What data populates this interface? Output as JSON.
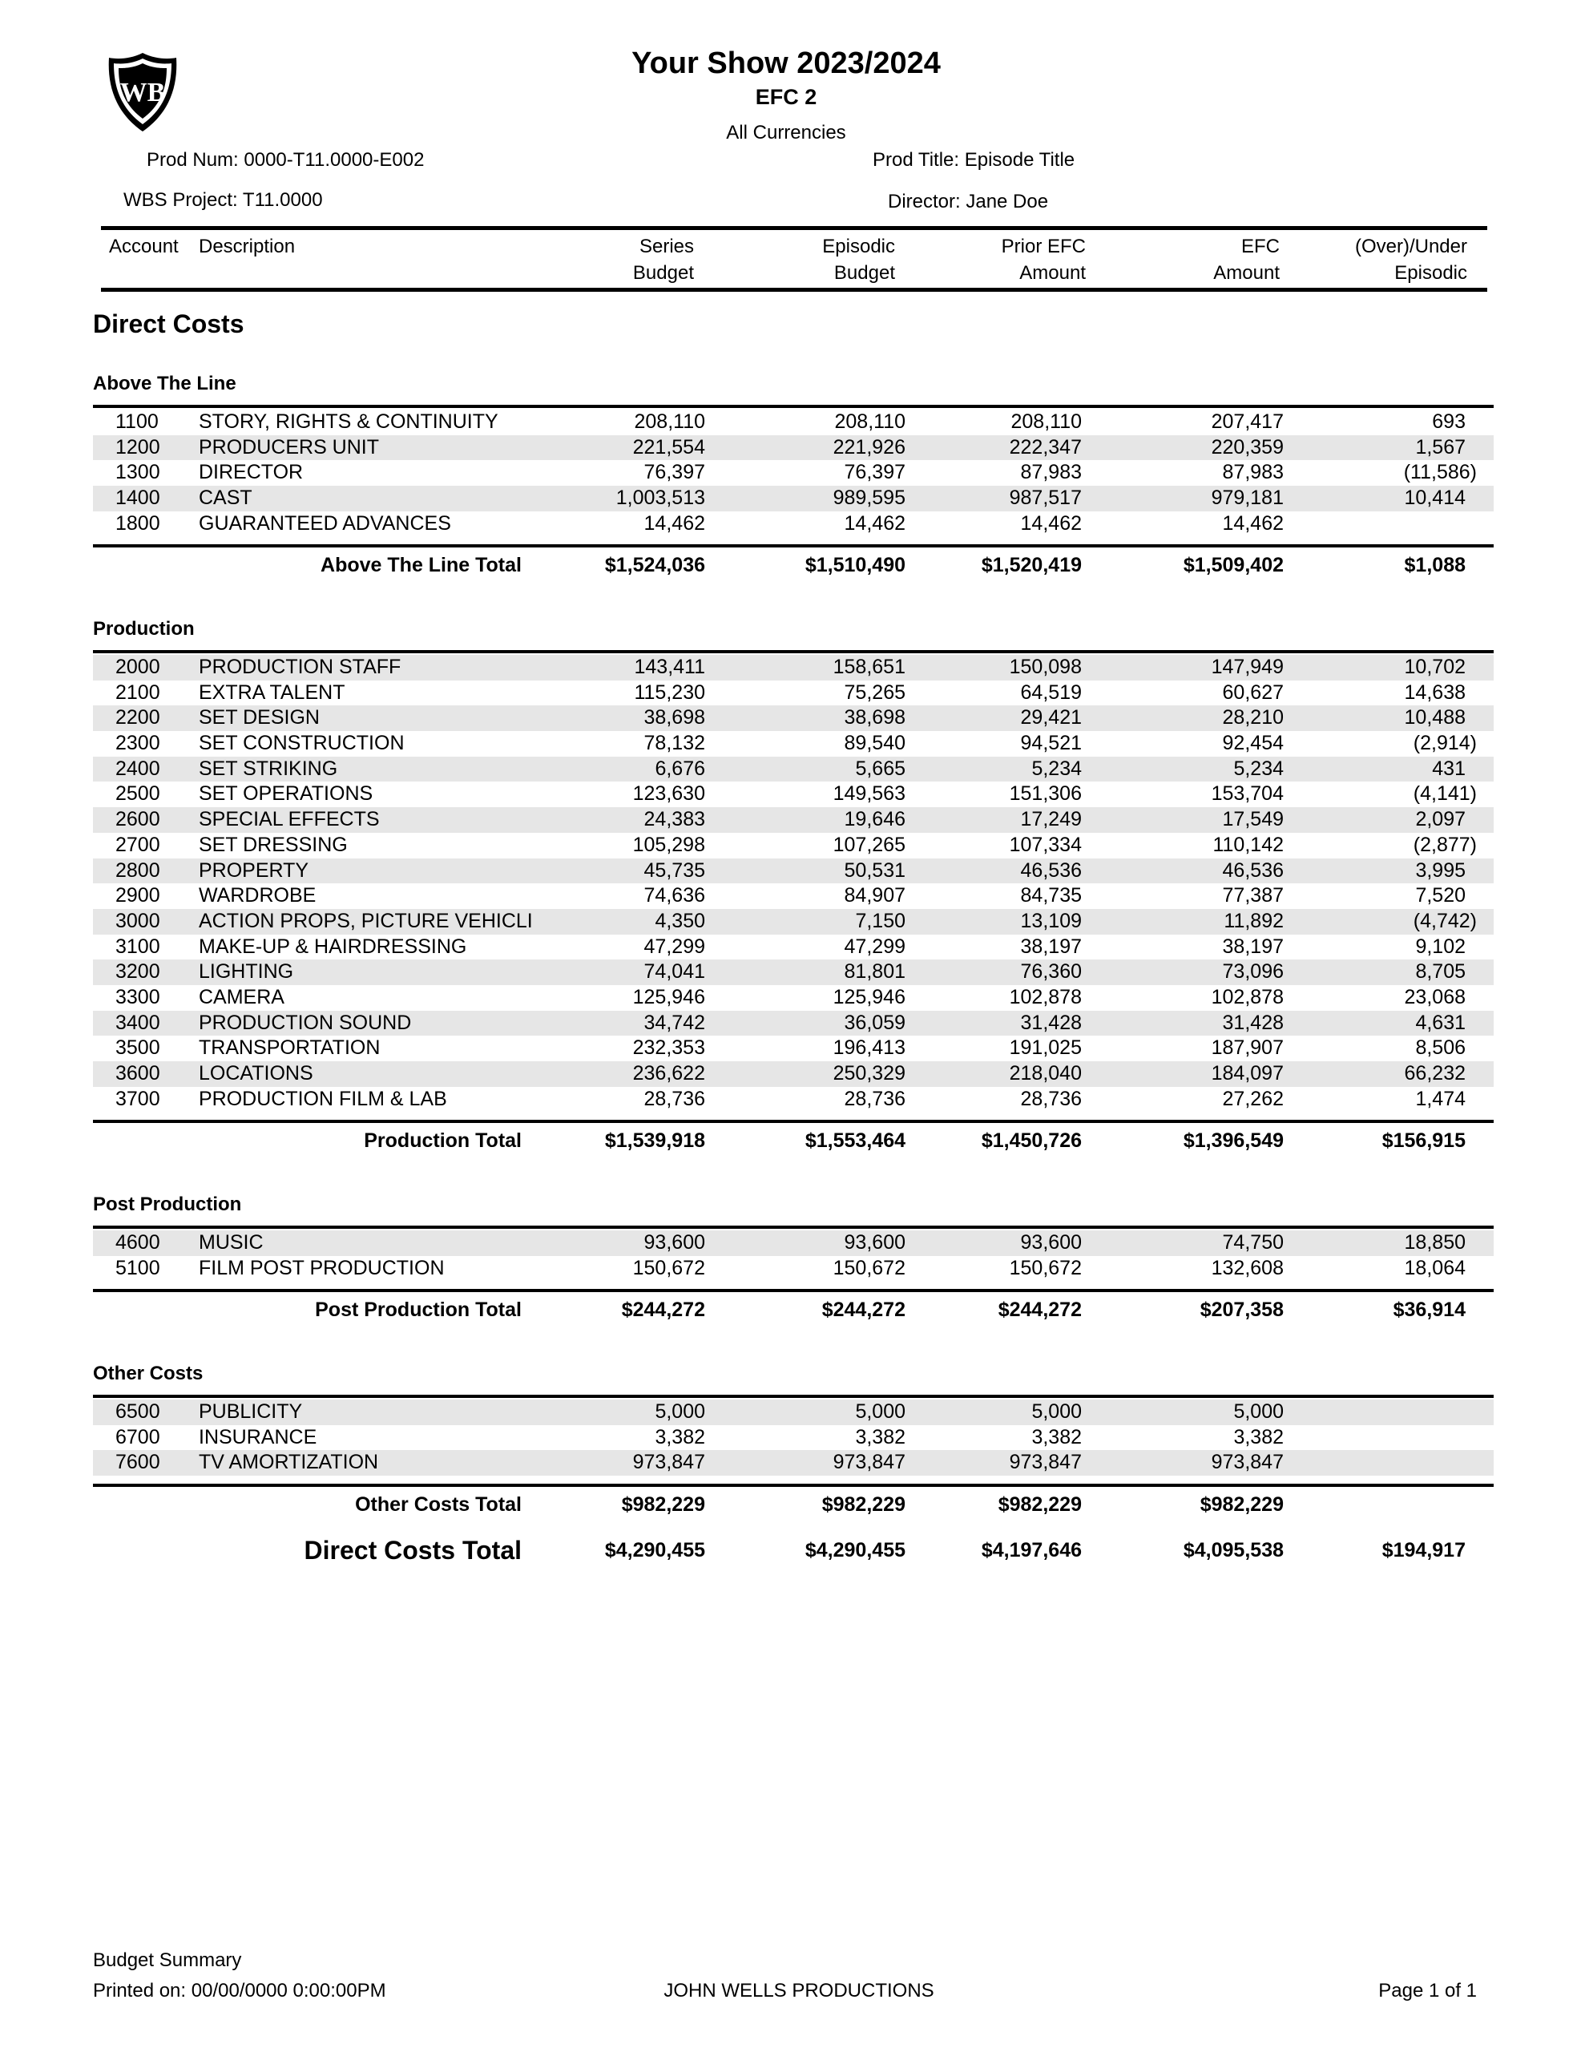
{
  "header": {
    "title": "Your Show 2023/2024",
    "subtitle": "EFC 2",
    "currency": "All Currencies",
    "prod_num": "Prod Num: 0000-T11.0000-E002",
    "wbs_project": "WBS Project:  T11.0000",
    "prod_title": "Prod Title: Episode Title",
    "director": "Director: Jane Doe"
  },
  "columns": {
    "account": "Account",
    "description": "Description",
    "c0": [
      "Series",
      "Budget"
    ],
    "c1": [
      "Episodic",
      "Budget"
    ],
    "c2": [
      "Prior EFC",
      "Amount"
    ],
    "c3": [
      "EFC",
      "Amount"
    ],
    "c4": [
      "(Over)/Under",
      "Episodic"
    ]
  },
  "group_title": "Direct Costs",
  "sections": [
    {
      "title": "Above The Line",
      "rows": [
        {
          "code": "1100",
          "desc": "STORY, RIGHTS & CONTINUITY",
          "values": [
            "208,110",
            "208,110",
            "208,110",
            "207,417",
            "693"
          ]
        },
        {
          "code": "1200",
          "desc": "PRODUCERS UNIT",
          "values": [
            "221,554",
            "221,926",
            "222,347",
            "220,359",
            "1,567"
          ]
        },
        {
          "code": "1300",
          "desc": "DIRECTOR",
          "values": [
            "76,397",
            "76,397",
            "87,983",
            "87,983",
            "(11,586)"
          ]
        },
        {
          "code": "1400",
          "desc": "CAST",
          "values": [
            "1,003,513",
            "989,595",
            "987,517",
            "979,181",
            "10,414"
          ]
        },
        {
          "code": "1800",
          "desc": "GUARANTEED ADVANCES",
          "values": [
            "14,462",
            "14,462",
            "14,462",
            "14,462",
            ""
          ]
        }
      ],
      "total_label": "Above The Line Total",
      "totals": [
        "$1,524,036",
        "$1,510,490",
        "$1,520,419",
        "$1,509,402",
        "$1,088"
      ]
    },
    {
      "title": "Production",
      "rows": [
        {
          "code": "2000",
          "desc": "PRODUCTION STAFF",
          "values": [
            "143,411",
            "158,651",
            "150,098",
            "147,949",
            "10,702"
          ]
        },
        {
          "code": "2100",
          "desc": "EXTRA TALENT",
          "values": [
            "115,230",
            "75,265",
            "64,519",
            "60,627",
            "14,638"
          ]
        },
        {
          "code": "2200",
          "desc": "SET DESIGN",
          "values": [
            "38,698",
            "38,698",
            "29,421",
            "28,210",
            "10,488"
          ]
        },
        {
          "code": "2300",
          "desc": "SET CONSTRUCTION",
          "values": [
            "78,132",
            "89,540",
            "94,521",
            "92,454",
            "(2,914)"
          ]
        },
        {
          "code": "2400",
          "desc": "SET STRIKING",
          "values": [
            "6,676",
            "5,665",
            "5,234",
            "5,234",
            "431"
          ]
        },
        {
          "code": "2500",
          "desc": "SET OPERATIONS",
          "values": [
            "123,630",
            "149,563",
            "151,306",
            "153,704",
            "(4,141)"
          ]
        },
        {
          "code": "2600",
          "desc": "SPECIAL EFFECTS",
          "values": [
            "24,383",
            "19,646",
            "17,249",
            "17,549",
            "2,097"
          ]
        },
        {
          "code": "2700",
          "desc": "SET DRESSING",
          "values": [
            "105,298",
            "107,265",
            "107,334",
            "110,142",
            "(2,877)"
          ]
        },
        {
          "code": "2800",
          "desc": "PROPERTY",
          "values": [
            "45,735",
            "50,531",
            "46,536",
            "46,536",
            "3,995"
          ]
        },
        {
          "code": "2900",
          "desc": "WARDROBE",
          "values": [
            "74,636",
            "84,907",
            "84,735",
            "77,387",
            "7,520"
          ]
        },
        {
          "code": "3000",
          "desc": "ACTION PROPS, PICTURE VEHICLI",
          "values": [
            "4,350",
            "7,150",
            "13,109",
            "11,892",
            "(4,742)"
          ]
        },
        {
          "code": "3100",
          "desc": "MAKE-UP & HAIRDRESSING",
          "values": [
            "47,299",
            "47,299",
            "38,197",
            "38,197",
            "9,102"
          ]
        },
        {
          "code": "3200",
          "desc": "LIGHTING",
          "values": [
            "74,041",
            "81,801",
            "76,360",
            "73,096",
            "8,705"
          ]
        },
        {
          "code": "3300",
          "desc": "CAMERA",
          "values": [
            "125,946",
            "125,946",
            "102,878",
            "102,878",
            "23,068"
          ]
        },
        {
          "code": "3400",
          "desc": "PRODUCTION SOUND",
          "values": [
            "34,742",
            "36,059",
            "31,428",
            "31,428",
            "4,631"
          ]
        },
        {
          "code": "3500",
          "desc": "TRANSPORTATION",
          "values": [
            "232,353",
            "196,413",
            "191,025",
            "187,907",
            "8,506"
          ]
        },
        {
          "code": "3600",
          "desc": "LOCATIONS",
          "values": [
            "236,622",
            "250,329",
            "218,040",
            "184,097",
            "66,232"
          ]
        },
        {
          "code": "3700",
          "desc": "PRODUCTION FILM & LAB",
          "values": [
            "28,736",
            "28,736",
            "28,736",
            "27,262",
            "1,474"
          ]
        }
      ],
      "total_label": "Production Total",
      "totals": [
        "$1,539,918",
        "$1,553,464",
        "$1,450,726",
        "$1,396,549",
        "$156,915"
      ]
    },
    {
      "title": "Post Production",
      "rows": [
        {
          "code": "4600",
          "desc": "MUSIC",
          "values": [
            "93,600",
            "93,600",
            "93,600",
            "74,750",
            "18,850"
          ]
        },
        {
          "code": "5100",
          "desc": "FILM POST PRODUCTION",
          "values": [
            "150,672",
            "150,672",
            "150,672",
            "132,608",
            "18,064"
          ]
        }
      ],
      "total_label": "Post Production Total",
      "totals": [
        "$244,272",
        "$244,272",
        "$244,272",
        "$207,358",
        "$36,914"
      ]
    },
    {
      "title": "Other Costs",
      "rows": [
        {
          "code": "6500",
          "desc": "PUBLICITY",
          "values": [
            "5,000",
            "5,000",
            "5,000",
            "5,000",
            ""
          ]
        },
        {
          "code": "6700",
          "desc": "INSURANCE",
          "values": [
            "3,382",
            "3,382",
            "3,382",
            "3,382",
            ""
          ]
        },
        {
          "code": "7600",
          "desc": "TV AMORTIZATION",
          "values": [
            "973,847",
            "973,847",
            "973,847",
            "973,847",
            ""
          ]
        }
      ],
      "total_label": "Other Costs Total",
      "totals": [
        "$982,229",
        "$982,229",
        "$982,229",
        "$982,229",
        ""
      ]
    }
  ],
  "grand_total": {
    "label": "Direct Costs Total",
    "values": [
      "$4,290,455",
      "$4,290,455",
      "$4,197,646",
      "$4,095,538",
      "$194,917"
    ]
  },
  "footer": {
    "report_name": "Budget Summary",
    "printed_on": "Printed on: 00/00/0000  0:00:00PM",
    "company": "JOHN WELLS PRODUCTIONS",
    "page": "Page 1 of 1"
  },
  "logo": {
    "icon": "wb-shield-logo",
    "text": "WB"
  }
}
